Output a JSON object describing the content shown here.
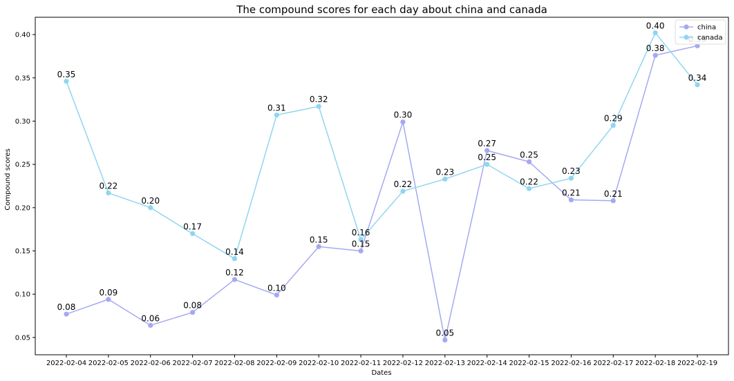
{
  "chart_data": {
    "type": "line",
    "title": "The compound scores for each day about china and canada",
    "xlabel": "Dates",
    "ylabel": "Compound scores",
    "x": [
      "2022-02-04",
      "2022-02-05",
      "2022-02-06",
      "2022-02-07",
      "2022-02-08",
      "2022-02-09",
      "2022-02-10",
      "2022-02-11",
      "2022-02-12",
      "2022-02-13",
      "2022-02-14",
      "2022-02-15",
      "2022-02-16",
      "2022-02-17",
      "2022-02-18",
      "2022-02-19"
    ],
    "ylim": [
      0.03,
      0.42
    ],
    "yticks": [
      "0.05",
      "0.10",
      "0.15",
      "0.20",
      "0.25",
      "0.30",
      "0.35",
      "0.40"
    ],
    "grid": false,
    "legend_position": "top-right",
    "series": [
      {
        "name": "china",
        "color": "#a5a8f2",
        "values": [
          0.077,
          0.094,
          0.064,
          0.079,
          0.117,
          0.099,
          0.155,
          0.15,
          0.299,
          0.047,
          0.266,
          0.253,
          0.209,
          0.208,
          0.376,
          0.387
        ],
        "labels": [
          "0.08",
          "0.09",
          "0.06",
          "0.08",
          "0.12",
          "0.10",
          "0.15",
          "0.15",
          "0.30",
          "0.05",
          "0.27",
          "0.25",
          "0.21",
          "0.21",
          "0.38",
          "0.39"
        ]
      },
      {
        "name": "canada",
        "color": "#8fd6f0",
        "values": [
          0.346,
          0.217,
          0.2,
          0.17,
          0.141,
          0.307,
          0.317,
          0.163,
          0.219,
          0.233,
          0.25,
          0.222,
          0.234,
          0.295,
          0.402,
          0.342
        ],
        "labels": [
          "0.35",
          "0.22",
          "0.20",
          "0.17",
          "0.14",
          "0.31",
          "0.32",
          "0.16",
          "0.22",
          "0.23",
          "0.25",
          "0.22",
          "0.23",
          "0.29",
          "0.40",
          "0.34"
        ]
      }
    ]
  }
}
